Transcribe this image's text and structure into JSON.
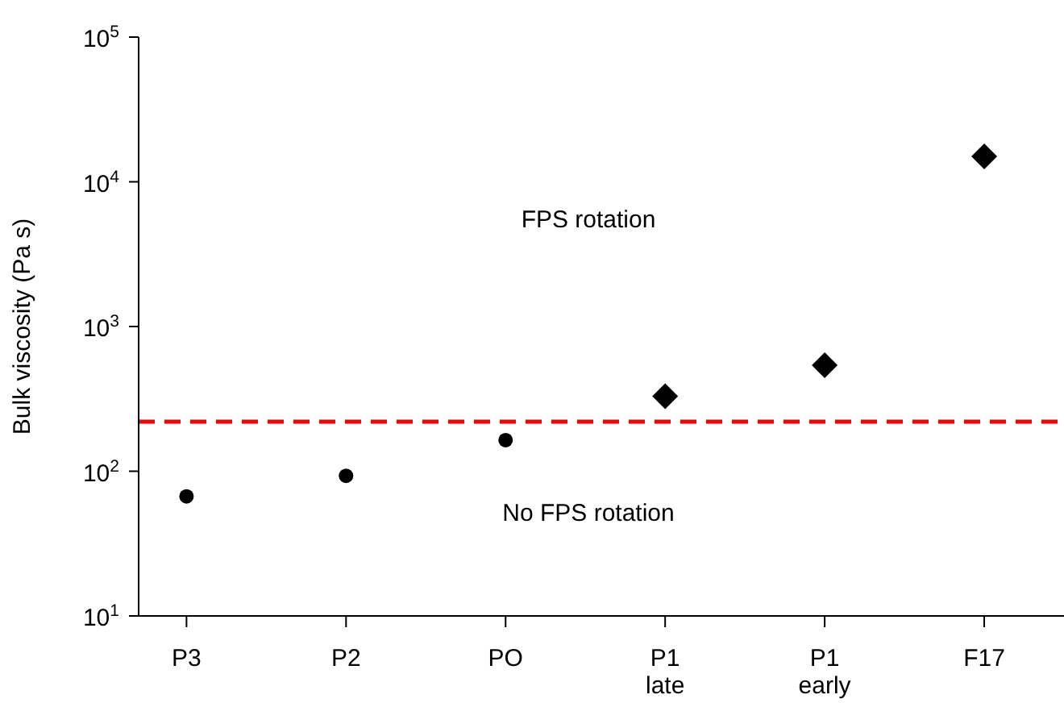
{
  "chart_data": {
    "type": "scatter",
    "ylabel": "Bulk viscosity (Pa s)",
    "categories": [
      "P3",
      "P2",
      "PO",
      "P1\nlate",
      "P1\nearly",
      "F17"
    ],
    "series": [
      {
        "marker": "circle",
        "color": "#000000",
        "values": [
          67,
          93,
          164,
          null,
          null,
          null
        ]
      },
      {
        "marker": "diamond",
        "color": "#000000",
        "values": [
          null,
          null,
          null,
          330,
          540,
          15000
        ]
      }
    ],
    "log": "y",
    "ylim": [
      10,
      100000
    ],
    "yticks": [
      {
        "value": 10,
        "label": "10$^{1}$"
      },
      {
        "value": 100,
        "label": "10$^{2}$"
      },
      {
        "value": 1000,
        "label": "10$^{3}$"
      },
      {
        "value": 10000,
        "label": "10$^{4}$"
      },
      {
        "value": 100000,
        "label": "10$^{5}$"
      }
    ],
    "ref_lines": [
      {
        "axis": "y",
        "value": 220,
        "color": "#ff0000",
        "line_style": "dashed"
      }
    ],
    "annotations": [
      "FPS rotation",
      "No FPS rotation"
    ]
  }
}
